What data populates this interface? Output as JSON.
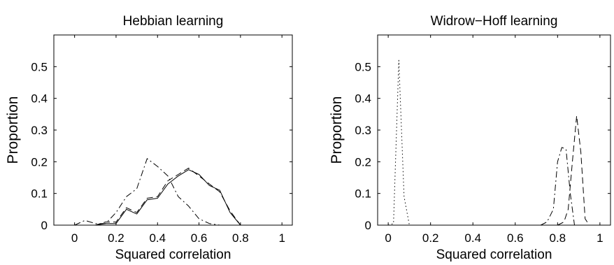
{
  "chart_data": [
    {
      "type": "line",
      "title": "Hebbian learning",
      "xlabel": "Squared correlation",
      "ylabel": "Proportion",
      "xlim": [
        -0.1,
        1.05
      ],
      "ylim": [
        0,
        0.6
      ],
      "xticks": [
        "0",
        "0.2",
        "0.4",
        "0.6",
        "0.8",
        "1"
      ],
      "yticks": [
        "0",
        "0.1",
        "0.2",
        "0.3",
        "0.4",
        "0.5"
      ],
      "x": [
        0.0,
        0.05,
        0.1,
        0.15,
        0.2,
        0.25,
        0.3,
        0.35,
        0.4,
        0.45,
        0.5,
        0.55,
        0.6,
        0.65,
        0.7,
        0.75,
        0.8,
        0.85,
        0.9,
        0.95,
        1.0
      ],
      "grid": false,
      "series": [
        {
          "style": "solid",
          "values": [
            0.0,
            0.0,
            0.0,
            0.005,
            0.005,
            0.05,
            0.035,
            0.08,
            0.085,
            0.13,
            0.155,
            0.175,
            0.16,
            0.125,
            0.11,
            0.04,
            0.0,
            0.0,
            0.0,
            0.0,
            0.0
          ]
        },
        {
          "style": "dashed",
          "values": [
            0.0,
            0.0,
            0.0,
            0.01,
            0.01,
            0.055,
            0.04,
            0.085,
            0.09,
            0.14,
            0.16,
            0.18,
            0.155,
            0.13,
            0.105,
            0.045,
            0.0,
            0.0,
            0.0,
            0.0,
            0.0
          ]
        },
        {
          "style": "dashdot",
          "values": [
            0.0,
            0.015,
            0.005,
            0.005,
            0.04,
            0.09,
            0.115,
            0.21,
            0.185,
            0.155,
            0.09,
            0.06,
            0.02,
            0.005,
            0.0,
            0.0,
            0.0,
            0.0,
            0.0,
            0.0,
            0.0
          ]
        },
        {
          "style": "dotted",
          "values": [
            0.0,
            0.0,
            0.0,
            0.0,
            0.0,
            0.0,
            0.0,
            0.0,
            0.0,
            0.0,
            0.0,
            0.0,
            0.0,
            0.0,
            0.0,
            0.0,
            0.0,
            0.0,
            0.0,
            0.0,
            0.0
          ]
        }
      ]
    },
    {
      "type": "line",
      "title": "Widrow−Hoff learning",
      "xlabel": "Squared correlation",
      "ylabel": "Proportion",
      "xlim": [
        -0.05,
        1.05
      ],
      "ylim": [
        0,
        0.6
      ],
      "xticks": [
        "0",
        "0.2",
        "0.4",
        "0.6",
        "0.8",
        "1"
      ],
      "yticks": [
        "0",
        "0.1",
        "0.2",
        "0.3",
        "0.4",
        "0.5"
      ],
      "grid": false,
      "series": [
        {
          "style": "dotted",
          "x": [
            0.0,
            0.025,
            0.05,
            0.075,
            0.1,
            0.125
          ],
          "values": [
            0.0,
            0.005,
            0.52,
            0.09,
            0.0,
            0.0
          ]
        },
        {
          "style": "dashdot",
          "x": [
            0.72,
            0.75,
            0.78,
            0.8,
            0.82,
            0.84,
            0.86,
            0.88,
            0.9
          ],
          "values": [
            0.0,
            0.01,
            0.05,
            0.2,
            0.245,
            0.24,
            0.1,
            0.0,
            0.0
          ]
        },
        {
          "style": "dashed",
          "x": [
            0.8,
            0.83,
            0.85,
            0.87,
            0.89,
            0.91,
            0.93,
            0.95
          ],
          "values": [
            0.0,
            0.01,
            0.05,
            0.2,
            0.345,
            0.23,
            0.02,
            0.0
          ]
        },
        {
          "style": "solid",
          "x": [
            0.84,
            0.86,
            0.88,
            0.9,
            0.92,
            0.94
          ],
          "values": [
            0.0,
            0.0,
            0.0,
            0.0,
            0.0,
            0.0
          ]
        }
      ]
    }
  ]
}
